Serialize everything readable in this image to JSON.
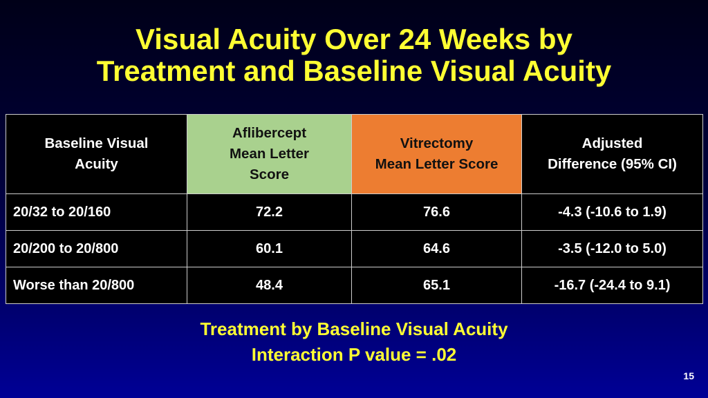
{
  "slide": {
    "title_line1": "Visual Acuity Over 24 Weeks by",
    "title_line2": "Treatment and Baseline Visual Acuity",
    "page_number": "15"
  },
  "table": {
    "headers": [
      {
        "line1": "Baseline Visual",
        "line2": "Acuity",
        "line3": ""
      },
      {
        "line1": "Aflibercept",
        "line2": "Mean Letter",
        "line3": "Score"
      },
      {
        "line1": "Vitrectomy",
        "line2": "Mean Letter Score",
        "line3": ""
      },
      {
        "line1": "Adjusted",
        "line2": "Difference (95% CI)",
        "line3": ""
      }
    ],
    "header_colors": {
      "aflibercept": "#a9d18e",
      "vitrectomy": "#ed7d31"
    },
    "rows": [
      {
        "baseline": "20/32 to 20/160",
        "aflibercept": "72.2",
        "vitrectomy": "76.6",
        "difference": "-4.3 (-10.6 to 1.9)"
      },
      {
        "baseline": "20/200 to 20/800",
        "aflibercept": "60.1",
        "vitrectomy": "64.6",
        "difference": "-3.5 (-12.0 to 5.0)"
      },
      {
        "baseline": "Worse than 20/800",
        "aflibercept": "48.4",
        "vitrectomy": "65.1",
        "difference": "-16.7 (-24.4 to 9.1)"
      }
    ]
  },
  "footnote": {
    "line1": "Treatment by Baseline Visual Acuity",
    "line2": "Interaction P value = .02"
  },
  "colors": {
    "title": "#ffff33",
    "background_top": "#000018",
    "background_bottom": "#000096"
  }
}
